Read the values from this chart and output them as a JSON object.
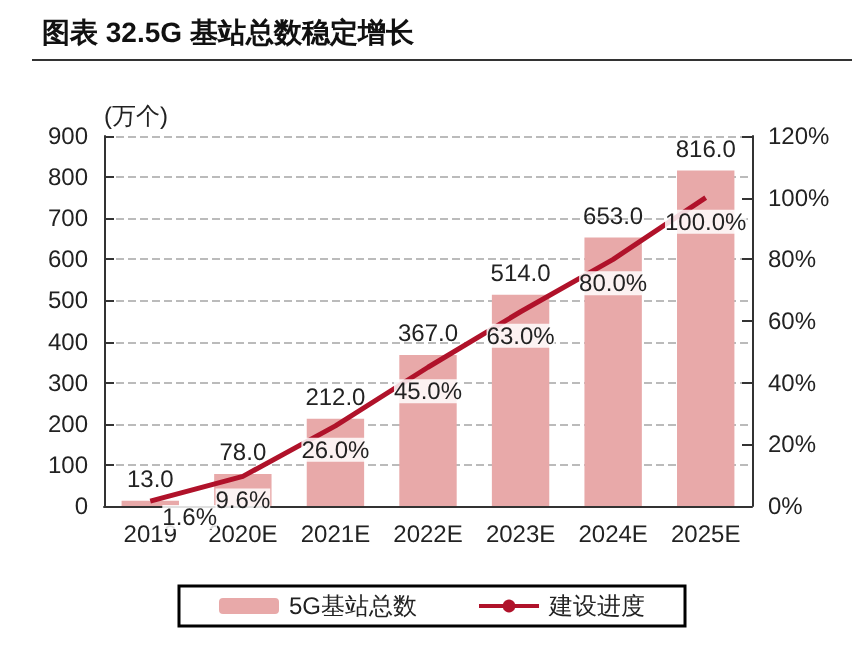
{
  "chart_data": {
    "type": "bar",
    "title": "图表 32.5G 基站总数稳定增长",
    "ylabel": "(万个)",
    "categories": [
      "2019",
      "2020E",
      "2021E",
      "2022E",
      "2023E",
      "2024E",
      "2025E"
    ],
    "series": [
      {
        "name": "5G基站总数",
        "color": "#e8a9a9",
        "values": [
          13.0,
          78.0,
          212.0,
          367.0,
          514.0,
          653.0,
          816.0
        ],
        "value_labels": [
          "13.0",
          "78.0",
          "212.0",
          "367.0",
          "514.0",
          "653.0",
          "816.0"
        ]
      },
      {
        "name": "建设进度",
        "type": "line",
        "axis": "y2",
        "color": "#b0122a",
        "values": [
          1.6,
          9.6,
          26.0,
          45.0,
          63.0,
          80.0,
          100.0
        ],
        "value_labels": [
          "1.6%",
          "9.6%",
          "26.0%",
          "45.0%",
          "63.0%",
          "80.0%",
          "100.0%"
        ]
      }
    ],
    "ylim": [
      0,
      900
    ],
    "yticks": [
      0,
      100,
      200,
      300,
      400,
      500,
      600,
      700,
      800,
      900
    ],
    "y2lim": [
      0,
      120
    ],
    "y2ticks": [
      {
        "value": 0,
        "label": "0%"
      },
      {
        "value": 20,
        "label": "20%"
      },
      {
        "value": 40,
        "label": "40%"
      },
      {
        "value": 60,
        "label": "60%"
      },
      {
        "value": 80,
        "label": "80%"
      },
      {
        "value": 100,
        "label": "100%"
      },
      {
        "value": 120,
        "label": "120%"
      }
    ],
    "grid": "y",
    "legend": "bottom",
    "marker": "none",
    "line_style": "solid"
  }
}
